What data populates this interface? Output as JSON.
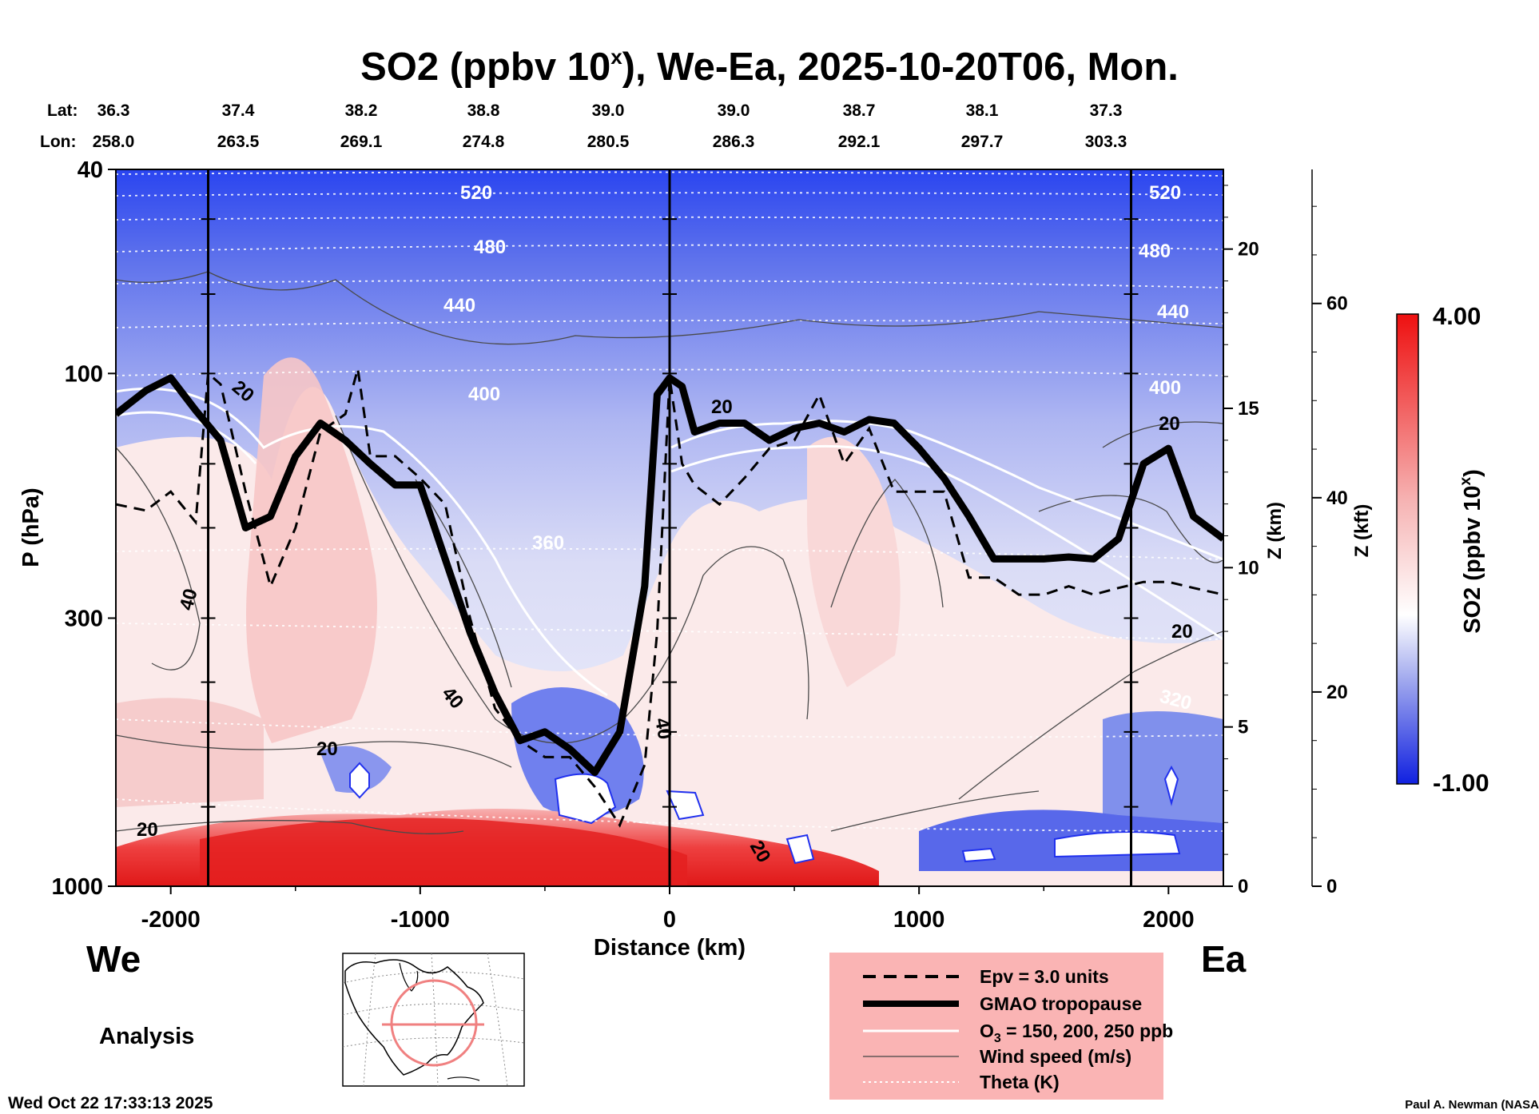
{
  "chart_data": {
    "type": "heatmap",
    "title": "SO2 (ppbv 10",
    "title_sup": "x",
    "title_rest": "), We-Ea, 2025-10-20T06, Mon.",
    "xlabel": "Distance (km)",
    "ylabel": "P (hPa)",
    "y2label": "Z (km)",
    "y3label": "Z (kft)",
    "colorbar_label": "SO2 (ppbv 10",
    "colorbar_label_sup": "x",
    "colorbar_label_rest": ")",
    "colorbar_max": "4.00",
    "colorbar_min": "-1.00",
    "xlim": [
      -2220,
      2220
    ],
    "ylim_hpa": [
      1000,
      40
    ],
    "x_ticks": [
      -2000,
      -1000,
      0,
      1000,
      2000
    ],
    "y_ticks_hpa": [
      1000,
      300,
      100,
      40
    ],
    "z_km_ticks": [
      0,
      5,
      10,
      15,
      20
    ],
    "z_kft_ticks": [
      0,
      20,
      40,
      60
    ],
    "vertical_lines_km": [
      -1850,
      0,
      1850
    ],
    "lat_label": "Lat:",
    "lon_label": "Lon:",
    "lat_lon": [
      {
        "lat": "36.3",
        "lon": "258.0"
      },
      {
        "lat": "37.4",
        "lon": "263.5"
      },
      {
        "lat": "38.2",
        "lon": "269.1"
      },
      {
        "lat": "38.8",
        "lon": "274.8"
      },
      {
        "lat": "39.0",
        "lon": "280.5"
      },
      {
        "lat": "39.0",
        "lon": "286.3"
      },
      {
        "lat": "38.7",
        "lon": "292.1"
      },
      {
        "lat": "38.1",
        "lon": "297.7"
      },
      {
        "lat": "37.3",
        "lon": "303.3"
      }
    ],
    "theta_labels": [
      "520",
      "480",
      "440",
      "400",
      "360",
      "320"
    ],
    "wind_labels": [
      "20",
      "40"
    ],
    "series": [
      {
        "name": "GMAO tropopause",
        "x": [
          -2220,
          -2100,
          -2000,
          -1900,
          -1800,
          -1700,
          -1600,
          -1500,
          -1400,
          -1300,
          -1200,
          -1100,
          -1000,
          -900,
          -800,
          -700,
          -600,
          -500,
          -400,
          -300,
          -200,
          -100,
          -50,
          0,
          50,
          100,
          200,
          300,
          400,
          500,
          600,
          700,
          800,
          900,
          1000,
          1100,
          1200,
          1300,
          1400,
          1500,
          1600,
          1700,
          1800,
          1900,
          2000,
          2100,
          2220
        ],
        "p_hpa": [
          120,
          108,
          102,
          118,
          135,
          200,
          190,
          145,
          125,
          135,
          150,
          165,
          165,
          230,
          320,
          420,
          520,
          500,
          540,
          600,
          500,
          260,
          110,
          102,
          106,
          130,
          125,
          125,
          135,
          128,
          125,
          130,
          123,
          125,
          140,
          160,
          190,
          230,
          230,
          230,
          228,
          230,
          210,
          150,
          140,
          190,
          210
        ]
      },
      {
        "name": "Epv = 3.0 units",
        "x": [
          -2220,
          -2100,
          -2000,
          -1900,
          -1850,
          -1800,
          -1700,
          -1600,
          -1500,
          -1400,
          -1300,
          -1250,
          -1200,
          -1100,
          -1000,
          -900,
          -800,
          -700,
          -600,
          -500,
          -400,
          -300,
          -200,
          -100,
          -50,
          0,
          50,
          100,
          200,
          300,
          400,
          500,
          600,
          700,
          800,
          900,
          1000,
          1100,
          1200,
          1300,
          1400,
          1500,
          1600,
          1700,
          1800,
          1900,
          2000,
          2100,
          2220
        ],
        "p_hpa": [
          180,
          185,
          170,
          195,
          100,
          105,
          170,
          260,
          200,
          130,
          120,
          98,
          145,
          145,
          160,
          180,
          300,
          450,
          520,
          560,
          560,
          640,
          760,
          580,
          320,
          102,
          150,
          165,
          180,
          160,
          140,
          135,
          110,
          150,
          128,
          170,
          170,
          170,
          250,
          250,
          270,
          270,
          260,
          270,
          262,
          255,
          255,
          262,
          270
        ]
      }
    ],
    "legend": [
      {
        "label": "Epv = 3.0 units",
        "style": "dashed"
      },
      {
        "label": "GMAO tropopause",
        "style": "thick"
      },
      {
        "label": "O",
        "sub": "3",
        "rest": " = 150, 200, 250 ppb",
        "style": "white"
      },
      {
        "label": "Wind speed (m/s)",
        "style": "thin"
      },
      {
        "label": "Theta (K)",
        "style": "dotted"
      }
    ],
    "legend_bg": "#fab4b4",
    "colors": {
      "so2_high": "#ef2020",
      "so2_low": "#2030ee",
      "so2_mid": "#ffffff",
      "legend_bg": "#fab4b4"
    }
  },
  "labels": {
    "left_dir": "We",
    "right_dir": "Ea",
    "analysis": "Analysis",
    "timestamp": "Wed Oct 22 17:33:13 2025",
    "credit": "Paul A. Newman (NASA"
  }
}
